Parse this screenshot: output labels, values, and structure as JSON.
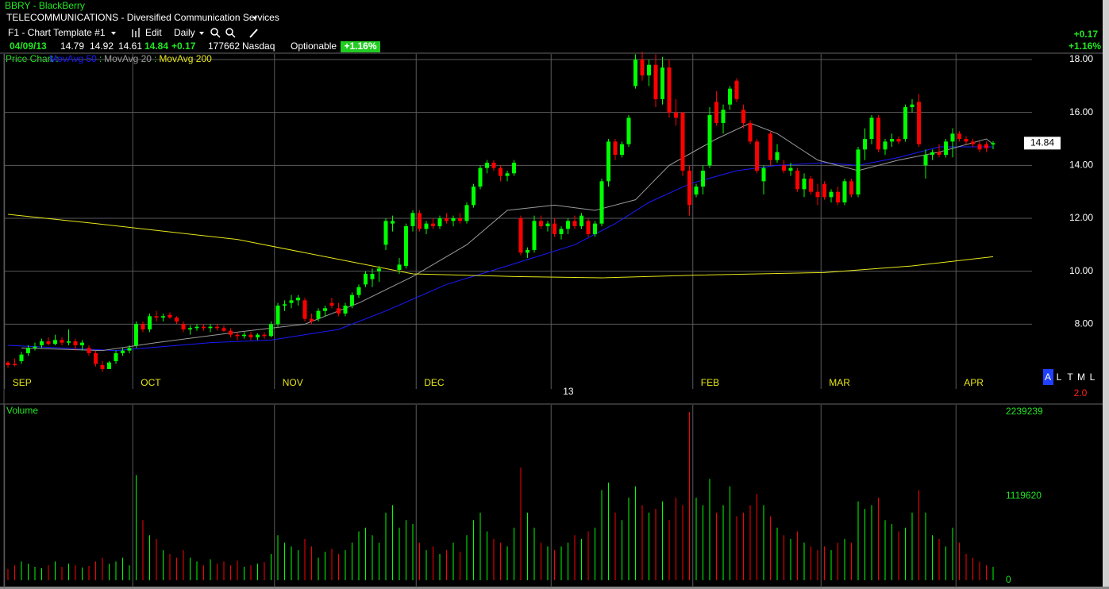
{
  "header": {
    "symbol": "BBRY - BlackBerry",
    "industry": "TELECOMMUNICATIONS - Diversified Communication Services",
    "template": "F1 - Chart Template #1",
    "edit": "Edit",
    "period": "Daily",
    "date": "04/09/13",
    "open": 14.79,
    "high": 14.92,
    "low": 14.61,
    "close": 14.84,
    "change": "+0.17",
    "volume": 177662,
    "exchange": "Nasdaq",
    "optionable": "Optionable",
    "change_pct": "+1.16%"
  },
  "chart_data": {
    "type": "candlestick",
    "legend_prefix": "Price Chart :",
    "legend_separator": ":",
    "up_color": "#00ff00",
    "down_color": "#ff0000",
    "ylim": [
      5.55,
      18.21
    ],
    "yticks": [
      {
        "value": 18,
        "label": "18.00"
      },
      {
        "value": 16,
        "label": "16.00"
      },
      {
        "value": 14,
        "label": "14.00"
      },
      {
        "value": 12,
        "label": "12.00"
      },
      {
        "value": 10,
        "label": "10.00"
      },
      {
        "value": 8,
        "label": "8.00"
      }
    ],
    "xticks": [
      {
        "value": 0,
        "label": "SEP"
      },
      {
        "value": 19,
        "label": "OCT"
      },
      {
        "value": 40,
        "label": "NOV"
      },
      {
        "value": 61,
        "label": "DEC"
      },
      {
        "value": 81,
        "label": "13"
      },
      {
        "value": 102,
        "label": "FEB"
      },
      {
        "value": 121,
        "label": "MAR"
      },
      {
        "value": 141,
        "label": "APR"
      }
    ],
    "grid": true,
    "candles": [
      [
        6.55,
        6.6,
        6.35,
        6.45
      ],
      [
        6.5,
        6.7,
        6.4,
        6.45
      ],
      [
        6.6,
        6.95,
        6.5,
        6.85
      ],
      [
        6.9,
        7.2,
        6.8,
        7.1
      ],
      [
        7.1,
        7.3,
        7.0,
        7.15
      ],
      [
        7.2,
        7.45,
        7.1,
        7.35
      ],
      [
        7.35,
        7.5,
        7.2,
        7.25
      ],
      [
        7.25,
        7.6,
        7.2,
        7.4
      ],
      [
        7.4,
        7.5,
        7.2,
        7.3
      ],
      [
        7.3,
        7.8,
        7.2,
        7.35
      ],
      [
        7.35,
        7.45,
        7.0,
        7.2
      ],
      [
        7.2,
        7.4,
        7.0,
        7.3
      ],
      [
        7.1,
        7.2,
        6.8,
        6.9
      ],
      [
        6.9,
        7.0,
        6.4,
        6.5
      ],
      [
        6.45,
        6.6,
        6.2,
        6.3
      ],
      [
        6.3,
        6.6,
        6.3,
        6.55
      ],
      [
        6.6,
        7.0,
        6.5,
        6.9
      ],
      [
        6.9,
        7.1,
        6.8,
        7.0
      ],
      [
        7.0,
        7.2,
        6.9,
        7.1
      ],
      [
        7.2,
        8.1,
        7.1,
        8.0
      ],
      [
        8.0,
        8.1,
        7.7,
        7.8
      ],
      [
        7.8,
        8.4,
        7.7,
        8.3
      ],
      [
        8.3,
        8.5,
        8.1,
        8.25
      ],
      [
        8.25,
        8.4,
        8.1,
        8.3
      ],
      [
        8.35,
        8.45,
        8.2,
        8.25
      ],
      [
        8.25,
        8.3,
        8.0,
        8.1
      ],
      [
        8.0,
        8.1,
        7.7,
        7.8
      ],
      [
        7.8,
        7.95,
        7.6,
        7.85
      ],
      [
        7.85,
        8.0,
        7.75,
        7.9
      ],
      [
        7.9,
        8.0,
        7.75,
        7.85
      ],
      [
        7.85,
        8.0,
        7.7,
        7.9
      ],
      [
        7.9,
        8.0,
        7.75,
        7.85
      ],
      [
        7.85,
        7.95,
        7.7,
        7.75
      ],
      [
        7.75,
        7.85,
        7.5,
        7.6
      ],
      [
        7.6,
        7.7,
        7.4,
        7.55
      ],
      [
        7.55,
        7.7,
        7.45,
        7.6
      ],
      [
        7.6,
        7.7,
        7.4,
        7.5
      ],
      [
        7.5,
        7.65,
        7.4,
        7.6
      ],
      [
        7.6,
        7.7,
        7.45,
        7.55
      ],
      [
        7.55,
        8.1,
        7.5,
        8.0
      ],
      [
        8.0,
        8.8,
        7.9,
        8.7
      ],
      [
        8.7,
        8.9,
        8.5,
        8.75
      ],
      [
        8.8,
        9.1,
        8.6,
        8.9
      ],
      [
        8.9,
        9.1,
        8.7,
        9.0
      ],
      [
        8.9,
        9.0,
        8.1,
        8.2
      ],
      [
        8.2,
        8.4,
        8.0,
        8.1
      ],
      [
        8.2,
        8.6,
        8.1,
        8.5
      ],
      [
        8.5,
        8.7,
        8.3,
        8.6
      ],
      [
        8.8,
        9.0,
        8.6,
        8.7
      ],
      [
        8.6,
        8.8,
        8.3,
        8.4
      ],
      [
        8.4,
        8.8,
        8.3,
        8.7
      ],
      [
        8.7,
        9.2,
        8.6,
        9.1
      ],
      [
        9.1,
        9.5,
        9.0,
        9.4
      ],
      [
        9.5,
        10.0,
        9.4,
        9.9
      ],
      [
        9.7,
        10.1,
        9.4,
        9.9
      ],
      [
        10.0,
        10.2,
        9.6,
        10.1
      ],
      [
        11.0,
        12.0,
        10.8,
        11.9
      ],
      [
        11.8,
        12.1,
        11.5,
        11.9
      ],
      [
        10.05,
        10.5,
        9.9,
        10.25
      ],
      [
        10.2,
        11.8,
        10.1,
        11.7
      ],
      [
        11.7,
        12.3,
        11.5,
        12.2
      ],
      [
        12.2,
        12.3,
        11.5,
        11.6
      ],
      [
        11.6,
        11.9,
        11.4,
        11.8
      ],
      [
        11.8,
        12.0,
        11.6,
        11.7
      ],
      [
        11.7,
        12.1,
        11.6,
        12.0
      ],
      [
        12.0,
        12.2,
        11.8,
        11.9
      ],
      [
        11.9,
        12.1,
        11.7,
        12.0
      ],
      [
        12.0,
        12.2,
        11.8,
        11.9
      ],
      [
        11.9,
        12.6,
        11.8,
        12.5
      ],
      [
        12.5,
        13.3,
        12.4,
        13.2
      ],
      [
        13.2,
        14.0,
        13.1,
        13.9
      ],
      [
        13.9,
        14.2,
        13.7,
        14.1
      ],
      [
        14.1,
        14.2,
        13.8,
        13.9
      ],
      [
        13.9,
        14.0,
        13.4,
        13.6
      ],
      [
        13.6,
        13.8,
        13.4,
        13.7
      ],
      [
        13.7,
        14.2,
        13.6,
        14.1
      ],
      [
        12.0,
        12.1,
        10.6,
        10.7
      ],
      [
        10.7,
        10.9,
        10.5,
        10.8
      ],
      [
        10.8,
        12.1,
        10.7,
        11.9
      ],
      [
        11.9,
        12.1,
        11.6,
        11.7
      ],
      [
        11.7,
        11.9,
        11.5,
        11.8
      ],
      [
        11.8,
        12.0,
        11.3,
        11.4
      ],
      [
        11.4,
        11.7,
        11.2,
        11.6
      ],
      [
        11.6,
        12.0,
        11.4,
        11.9
      ],
      [
        11.9,
        12.1,
        11.6,
        11.7
      ],
      [
        11.7,
        12.2,
        11.6,
        12.1
      ],
      [
        11.9,
        12.0,
        11.3,
        11.4
      ],
      [
        11.4,
        11.9,
        11.3,
        11.8
      ],
      [
        11.8,
        13.5,
        11.7,
        13.4
      ],
      [
        13.4,
        15.0,
        13.2,
        14.9
      ],
      [
        14.9,
        15.0,
        14.2,
        14.4
      ],
      [
        14.4,
        14.9,
        14.3,
        14.8
      ],
      [
        14.8,
        15.9,
        14.7,
        15.8
      ],
      [
        17.0,
        18.2,
        16.9,
        18.0
      ],
      [
        18.0,
        18.3,
        17.2,
        17.4
      ],
      [
        17.4,
        18.0,
        17.0,
        17.8
      ],
      [
        17.8,
        18.2,
        16.2,
        16.5
      ],
      [
        16.5,
        18.1,
        16.3,
        17.7
      ],
      [
        17.7,
        18.0,
        15.8,
        16.0
      ],
      [
        16.0,
        16.5,
        15.5,
        15.8
      ],
      [
        16.0,
        16.0,
        13.6,
        13.8
      ],
      [
        13.8,
        14.0,
        12.1,
        12.5
      ],
      [
        12.9,
        13.3,
        12.8,
        13.2
      ],
      [
        13.2,
        14.0,
        12.9,
        13.8
      ],
      [
        14.0,
        16.2,
        13.9,
        15.9
      ],
      [
        16.4,
        16.8,
        15.5,
        15.6
      ],
      [
        15.6,
        16.3,
        15.2,
        16.1
      ],
      [
        16.3,
        17.0,
        16.1,
        16.9
      ],
      [
        17.2,
        17.3,
        16.4,
        16.5
      ],
      [
        16.1,
        16.3,
        15.4,
        15.6
      ],
      [
        15.6,
        15.7,
        14.8,
        14.9
      ],
      [
        14.9,
        15.0,
        13.7,
        13.8
      ],
      [
        13.4,
        14.0,
        12.9,
        13.9
      ],
      [
        15.2,
        15.3,
        14.0,
        14.2
      ],
      [
        14.2,
        14.8,
        14.1,
        14.5
      ],
      [
        14.0,
        14.2,
        13.7,
        13.8
      ],
      [
        13.8,
        14.1,
        13.6,
        13.9
      ],
      [
        13.8,
        13.9,
        13.0,
        13.1
      ],
      [
        13.1,
        13.7,
        12.8,
        13.5
      ],
      [
        13.5,
        13.6,
        12.9,
        13.0
      ],
      [
        13.0,
        13.3,
        12.5,
        12.8
      ],
      [
        13.3,
        13.4,
        12.7,
        12.8
      ],
      [
        12.8,
        13.1,
        12.6,
        13.0
      ],
      [
        13.0,
        13.2,
        12.5,
        12.6
      ],
      [
        12.6,
        13.5,
        12.5,
        13.4
      ],
      [
        13.4,
        13.5,
        12.8,
        12.9
      ],
      [
        12.9,
        14.7,
        12.8,
        14.6
      ],
      [
        14.6,
        15.4,
        14.2,
        15.0
      ],
      [
        15.0,
        15.9,
        14.8,
        15.8
      ],
      [
        15.8,
        15.9,
        14.5,
        14.6
      ],
      [
        14.6,
        15.0,
        14.4,
        14.9
      ],
      [
        14.9,
        15.2,
        14.7,
        15.0
      ],
      [
        15.0,
        15.1,
        14.8,
        14.9
      ],
      [
        15.0,
        16.3,
        14.9,
        16.2
      ],
      [
        16.2,
        16.5,
        16.0,
        16.3
      ],
      [
        16.4,
        16.7,
        14.7,
        14.8
      ],
      [
        14.0,
        14.6,
        13.5,
        14.4
      ],
      [
        14.4,
        14.6,
        14.2,
        14.5
      ],
      [
        14.5,
        14.8,
        14.3,
        14.4
      ],
      [
        14.4,
        15.0,
        14.3,
        14.9
      ],
      [
        14.9,
        15.4,
        14.3,
        15.2
      ],
      [
        15.2,
        15.3,
        14.9,
        15.0
      ],
      [
        15.0,
        15.1,
        14.8,
        14.9
      ],
      [
        14.9,
        15.0,
        14.7,
        14.8
      ],
      [
        14.8,
        14.9,
        14.5,
        14.6
      ],
      [
        14.8,
        14.9,
        14.5,
        14.65
      ],
      [
        14.79,
        14.92,
        14.61,
        14.84
      ]
    ],
    "moving_averages": [
      {
        "name": "MovAvg 50",
        "color": "#1a1aff",
        "x": [
          0,
          16,
          30,
          39,
          49,
          56,
          65,
          74,
          84,
          90,
          95,
          101,
          108,
          114,
          121,
          126,
          132,
          138,
          146
        ],
        "values": [
          7.2,
          7.0,
          7.3,
          7.4,
          7.8,
          8.5,
          9.5,
          10.2,
          11.0,
          11.8,
          12.6,
          13.3,
          13.8,
          14.0,
          14.1,
          14.0,
          14.3,
          14.7,
          14.7
        ]
      },
      {
        "name": "MovAvg 20",
        "color": "#9a9a9a",
        "x": [
          2,
          14,
          22,
          34,
          44,
          52,
          60,
          68,
          74,
          81,
          87,
          93,
          98,
          105,
          110,
          114,
          120,
          126,
          132,
          138,
          145,
          146
        ],
        "values": [
          7.1,
          7.0,
          7.3,
          7.7,
          8.0,
          8.8,
          9.8,
          11.0,
          12.3,
          12.5,
          12.3,
          12.7,
          14.0,
          15.0,
          15.6,
          15.2,
          14.2,
          13.8,
          14.2,
          14.5,
          15.0,
          14.8
        ]
      },
      {
        "name": "MovAvg 200",
        "color": "#e6e619",
        "x": [
          0,
          13,
          34,
          48,
          60,
          75,
          88,
          102,
          121,
          134,
          146
        ],
        "values": [
          12.15,
          11.8,
          11.2,
          10.5,
          9.9,
          9.8,
          9.75,
          9.85,
          9.95,
          10.2,
          10.55
        ]
      }
    ],
    "volume": {
      "label": "Volume",
      "ylim": [
        0,
        2239239
      ],
      "yticks": [
        2239239,
        1119620,
        0
      ],
      "values": [
        150000,
        200000,
        250000,
        220000,
        180000,
        160000,
        200000,
        250000,
        180000,
        220000,
        200000,
        170000,
        190000,
        250000,
        300000,
        220000,
        250000,
        300000,
        200000,
        1400000,
        800000,
        600000,
        550000,
        400000,
        350000,
        300000,
        400000,
        300000,
        250000,
        200000,
        280000,
        220000,
        250000,
        200000,
        260000,
        180000,
        200000,
        220000,
        240000,
        350000,
        600000,
        500000,
        450000,
        400000,
        550000,
        450000,
        300000,
        380000,
        420000,
        350000,
        400000,
        500000,
        650000,
        700000,
        600000,
        500000,
        900000,
        1000000,
        700000,
        800000,
        750000,
        500000,
        400000,
        450000,
        350000,
        400000,
        500000,
        380000,
        600000,
        800000,
        900000,
        650000,
        550000,
        500000,
        450000,
        700000,
        1500000,
        900000,
        700000,
        500000,
        450000,
        400000,
        450000,
        500000,
        600000,
        550000,
        650000,
        700000,
        1200000,
        1300000,
        900000,
        800000,
        1100000,
        1250000,
        1000000,
        900000,
        950000,
        1050000,
        800000,
        1100000,
        1000000,
        2239239,
        1100000,
        1000000,
        1350000,
        900000,
        1000000,
        1250000,
        850000,
        900000,
        1000000,
        1150000,
        1000000,
        850000,
        700000,
        600000,
        550000,
        650000,
        500000,
        450000,
        400000,
        450000,
        400000,
        500000,
        550000,
        500000,
        1050000,
        950000,
        1000000,
        1100000,
        800000,
        750000,
        650000,
        700000,
        900000,
        1200000,
        900000,
        600000,
        550000,
        450000,
        700000,
        500000,
        350000,
        300000,
        250000,
        200000,
        177662
      ]
    },
    "mode_buttons": [
      "A",
      "L",
      "T",
      "M",
      "L"
    ],
    "scale_label": "2.0"
  }
}
